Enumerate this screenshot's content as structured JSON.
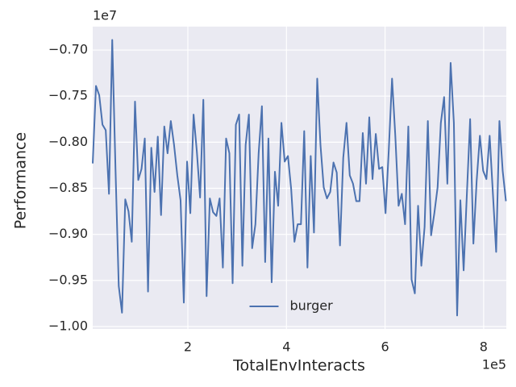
{
  "chart_data": {
    "type": "line",
    "xlabel": "TotalEnvInteracts",
    "ylabel": "Performance",
    "x_offset": "1e5",
    "y_offset": "1e7",
    "x": [
      0.07,
      0.136,
      0.202,
      0.268,
      0.334,
      0.4,
      0.466,
      0.532,
      0.598,
      0.664,
      0.73,
      0.796,
      0.862,
      0.928,
      0.994,
      1.06,
      1.126,
      1.192,
      1.258,
      1.324,
      1.39,
      1.456,
      1.522,
      1.588,
      1.654,
      1.72,
      1.786,
      1.852,
      1.918,
      1.984,
      2.05,
      2.116,
      2.182,
      2.248,
      2.314,
      2.38,
      2.446,
      2.512,
      2.578,
      2.644,
      2.71,
      2.776,
      2.842,
      2.908,
      2.974,
      3.04,
      3.106,
      3.172,
      3.238,
      3.304,
      3.37,
      3.436,
      3.502,
      3.568,
      3.634,
      3.7,
      3.766,
      3.832,
      3.898,
      3.964,
      4.03,
      4.096,
      4.162,
      4.228,
      4.294,
      4.36,
      4.426,
      4.492,
      4.558,
      4.624,
      4.69,
      4.756,
      4.822,
      4.888,
      4.954,
      5.02,
      5.086,
      5.152,
      5.218,
      5.284,
      5.35,
      5.416,
      5.482,
      5.548,
      5.614,
      5.68,
      5.746,
      5.812,
      5.878,
      5.944,
      6.01,
      6.076,
      6.142,
      6.208,
      6.274,
      6.34,
      6.406,
      6.472,
      6.538,
      6.604,
      6.67,
      6.736,
      6.802,
      6.868,
      6.934,
      7.0,
      7.066,
      7.132,
      7.198,
      7.264,
      7.33,
      7.396,
      7.462,
      7.528,
      7.594,
      7.66,
      7.726,
      7.792,
      7.858,
      7.924,
      7.99,
      8.056,
      8.122,
      8.188,
      8.254,
      8.32,
      8.386,
      8.452
    ],
    "series": [
      {
        "name": "burger",
        "color": "#4c72b0",
        "values": [
          -0.823,
          -0.739,
          -0.749,
          -0.781,
          -0.787,
          -0.856,
          -0.689,
          -0.829,
          -0.956,
          -0.985,
          -0.862,
          -0.875,
          -0.908,
          -0.756,
          -0.841,
          -0.829,
          -0.796,
          -0.962,
          -0.806,
          -0.854,
          -0.794,
          -0.879,
          -0.783,
          -0.812,
          -0.777,
          -0.803,
          -0.836,
          -0.863,
          -0.974,
          -0.821,
          -0.877,
          -0.77,
          -0.81,
          -0.86,
          -0.754,
          -0.967,
          -0.861,
          -0.876,
          -0.88,
          -0.861,
          -0.936,
          -0.796,
          -0.812,
          -0.953,
          -0.781,
          -0.77,
          -0.934,
          -0.803,
          -0.77,
          -0.915,
          -0.889,
          -0.812,
          -0.761,
          -0.93,
          -0.796,
          -0.952,
          -0.832,
          -0.869,
          -0.779,
          -0.821,
          -0.815,
          -0.851,
          -0.908,
          -0.889,
          -0.889,
          -0.788,
          -0.936,
          -0.815,
          -0.898,
          -0.731,
          -0.803,
          -0.849,
          -0.861,
          -0.854,
          -0.822,
          -0.833,
          -0.912,
          -0.817,
          -0.779,
          -0.836,
          -0.845,
          -0.864,
          -0.864,
          -0.79,
          -0.845,
          -0.773,
          -0.84,
          -0.791,
          -0.829,
          -0.827,
          -0.877,
          -0.808,
          -0.731,
          -0.793,
          -0.869,
          -0.856,
          -0.889,
          -0.783,
          -0.949,
          -0.964,
          -0.869,
          -0.934,
          -0.892,
          -0.777,
          -0.901,
          -0.877,
          -0.849,
          -0.779,
          -0.751,
          -0.845,
          -0.714,
          -0.779,
          -0.988,
          -0.863,
          -0.939,
          -0.856,
          -0.775,
          -0.91,
          -0.842,
          -0.793,
          -0.831,
          -0.84,
          -0.793,
          -0.856,
          -0.919,
          -0.777,
          -0.831,
          -0.864
        ]
      }
    ],
    "xlim": [
      0.07,
      8.46
    ],
    "ylim": [
      -1.0026,
      -0.6746
    ],
    "xticks": [
      2,
      4,
      6,
      8
    ],
    "yticks": [
      {
        "value": -1.0,
        "label": "−1.00"
      },
      {
        "value": -0.95,
        "label": "−0.95"
      },
      {
        "value": -0.9,
        "label": "−0.90"
      },
      {
        "value": -0.85,
        "label": "−0.85"
      },
      {
        "value": -0.8,
        "label": "−0.80"
      },
      {
        "value": -0.75,
        "label": "−0.75"
      },
      {
        "value": -0.7,
        "label": "−0.70"
      }
    ],
    "grid": true,
    "legend": "lower center"
  }
}
